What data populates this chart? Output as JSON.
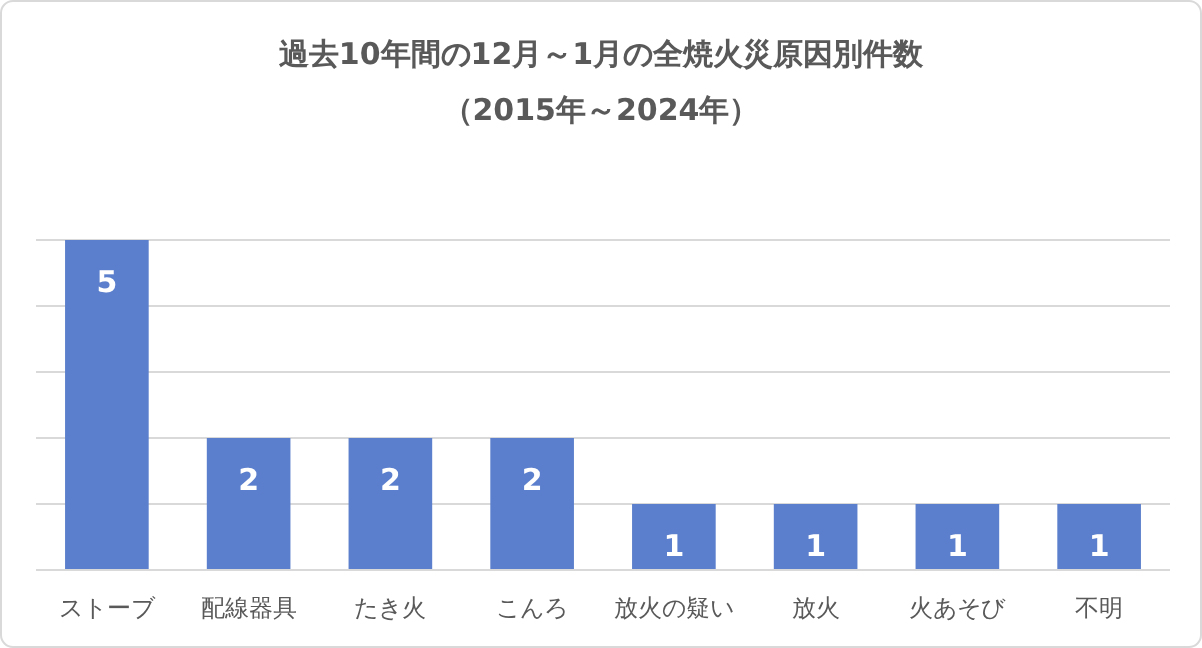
{
  "chart_data": {
    "type": "bar",
    "title": "過去10年間の12月～1月の全焼火災原因別件数",
    "subtitle": "（2015年～2024年）",
    "categories": [
      "ストーブ",
      "配線器具",
      "たき火",
      "こんろ",
      "放火の疑い",
      "放火",
      "火あそび",
      "不明"
    ],
    "values": [
      5,
      2,
      2,
      2,
      1,
      1,
      1,
      1
    ],
    "color": "#5b7fcc",
    "ylim": [
      0,
      5
    ],
    "yticks": [
      {
        "value": 0,
        "label": null
      },
      {
        "value": 1,
        "label": null
      },
      {
        "value": 2,
        "label": null
      },
      {
        "value": 3,
        "label": null
      },
      {
        "value": 4,
        "label": null
      },
      {
        "value": 5,
        "label": null
      }
    ],
    "grid": "y",
    "data_labels": true
  }
}
